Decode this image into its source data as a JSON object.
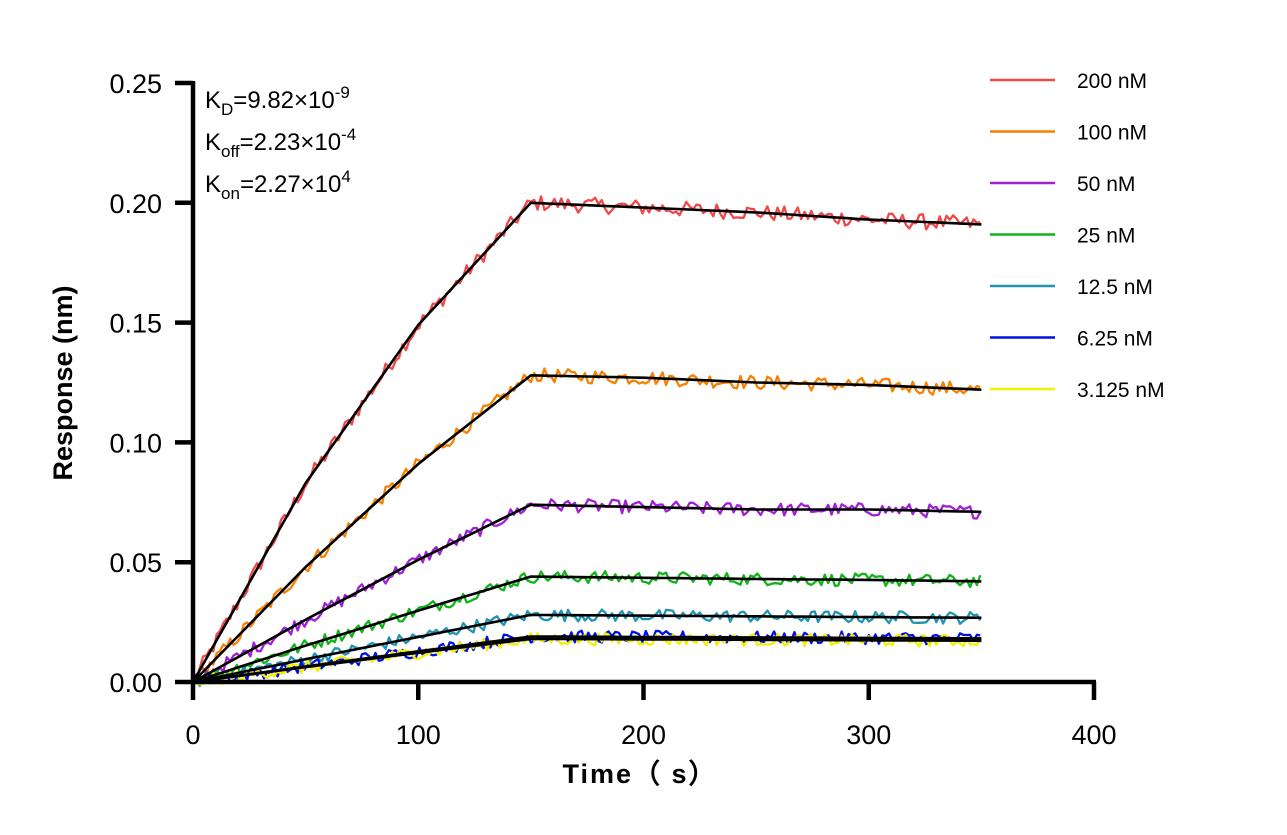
{
  "chart_data": {
    "type": "line",
    "xlabel": "Time（ s）",
    "ylabel": "Response (nm)",
    "xlim": [
      0,
      400
    ],
    "ylim": [
      0,
      0.25
    ],
    "xticks": [
      "0",
      "100",
      "200",
      "300",
      "400"
    ],
    "yticks": [
      "0.00",
      "0.05",
      "0.10",
      "0.15",
      "0.20",
      "0.25"
    ],
    "grid": false,
    "legend_position": "right",
    "annotations": {
      "kd": {
        "base": "K",
        "sub": "D",
        "eq": "=9.82×10",
        "exp": "-9"
      },
      "koff": {
        "base": "K",
        "sub": "off",
        "eq": "=2.23×10",
        "exp": "-4"
      },
      "kon": {
        "base": "K",
        "sub": "on",
        "eq": "=2.27×10",
        "exp": "4"
      }
    },
    "fit_color": "#000000",
    "fit_x": [
      0,
      50,
      100,
      150,
      200,
      250,
      300,
      350
    ],
    "series": [
      {
        "name": "200 nM",
        "color": "#f04848",
        "fit": [
          0,
          0.083,
          0.149,
          0.2,
          0.198,
          0.196,
          0.193,
          0.191
        ]
      },
      {
        "name": "100 nM",
        "color": "#f78000",
        "fit": [
          0,
          0.048,
          0.091,
          0.128,
          0.127,
          0.125,
          0.124,
          0.122
        ]
      },
      {
        "name": "50 nM",
        "color": "#a020d8",
        "fit": [
          0,
          0.026,
          0.051,
          0.074,
          0.073,
          0.072,
          0.072,
          0.071
        ]
      },
      {
        "name": "25 nM",
        "color": "#10b418",
        "fit": [
          0,
          0.0152,
          0.0298,
          0.044,
          0.0435,
          0.043,
          0.0426,
          0.042
        ]
      },
      {
        "name": "12.5 nM",
        "color": "#2094b0",
        "fit": [
          0,
          0.0095,
          0.0188,
          0.028,
          0.0277,
          0.0274,
          0.0271,
          0.0268
        ]
      },
      {
        "name": "6.25 nM",
        "color": "#0010e8",
        "fit": [
          0,
          0.0065,
          0.0128,
          0.019,
          0.0188,
          0.0186,
          0.0184,
          0.0182
        ]
      },
      {
        "name": "3.125 nM",
        "color": "#f4f000",
        "fit": [
          0,
          0.0062,
          0.0122,
          0.018,
          0.0178,
          0.0176,
          0.0174,
          0.0172
        ]
      }
    ]
  }
}
